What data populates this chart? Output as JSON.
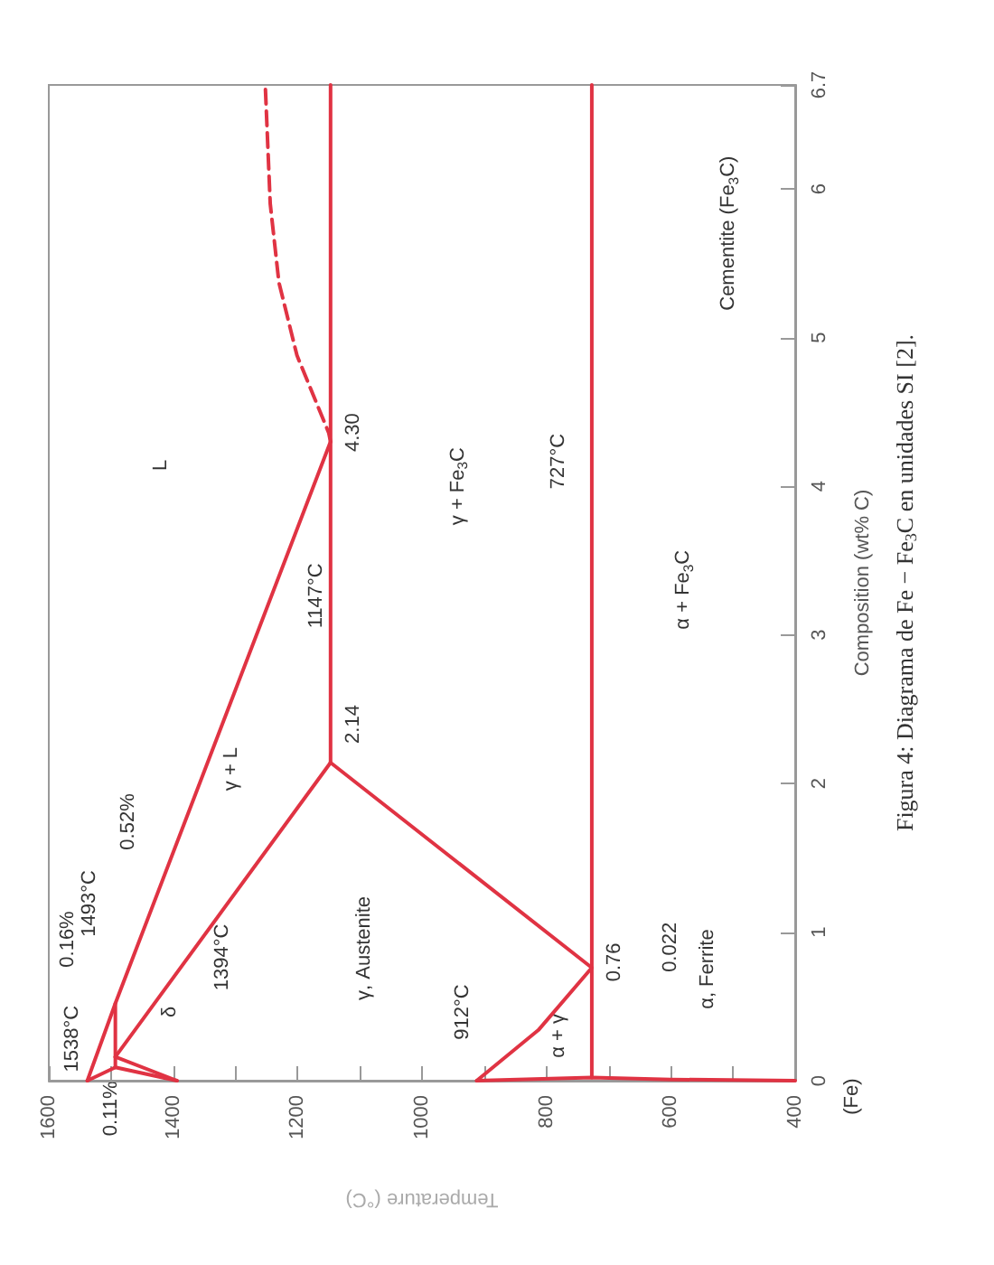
{
  "chart_data": {
    "type": "line",
    "xlabel": "Temperature (°C)",
    "ylabel": "Composition (wt% C)",
    "xlim": [
      1600,
      400
    ],
    "ylim": [
      0,
      6.7
    ],
    "xticks": [
      1600,
      {
        "value": 1500,
        "label": null
      },
      1400,
      {
        "value": 1300,
        "label": null
      },
      1200,
      {
        "value": 1100,
        "label": null
      },
      1000,
      {
        "value": 900,
        "label": null
      },
      800,
      {
        "value": 700,
        "label": null
      },
      600,
      {
        "value": 500,
        "label": null
      },
      400
    ],
    "yticks": [
      0,
      1,
      2,
      3,
      4,
      5,
      6,
      6.7
    ],
    "marker": "none",
    "series": [
      {
        "color": "#e03343",
        "x": [
          1538,
          1493,
          1147
        ],
        "values": [
          0,
          0.52,
          4.3
        ]
      },
      {
        "color": "#e03343",
        "line_style": "dashed",
        "x": [
          1147,
          1150,
          1201,
          1230,
          1244,
          1252
        ],
        "values": [
          4.3,
          4.36,
          4.88,
          5.37,
          5.9,
          6.7
        ]
      },
      {
        "color": "#e03343",
        "x": [
          1538,
          1493
        ],
        "values": [
          0,
          0.09
        ]
      },
      {
        "color": "#e03343",
        "x": [
          1493,
          1493
        ],
        "values": [
          0.09,
          0.52
        ]
      },
      {
        "color": "#e03343",
        "x": [
          1493,
          1147
        ],
        "values": [
          0.16,
          2.14
        ]
      },
      {
        "color": "#e03343",
        "x": [
          1147,
          1147
        ],
        "values": [
          2.14,
          6.7
        ]
      },
      {
        "color": "#e03343",
        "x": [
          1493,
          1394
        ],
        "values": [
          0.09,
          0
        ]
      },
      {
        "color": "#e03343",
        "x": [
          1493,
          1394
        ],
        "values": [
          0.16,
          0
        ]
      },
      {
        "color": "#e03343",
        "x": [
          1147,
          727
        ],
        "values": [
          2.14,
          0.76
        ]
      },
      {
        "color": "#e03343",
        "x": [
          912,
          813,
          727
        ],
        "values": [
          0,
          0.34,
          0.76
        ]
      },
      {
        "color": "#e03343",
        "x": [
          727,
          727
        ],
        "values": [
          0.022,
          6.7
        ]
      },
      {
        "color": "#e03343",
        "x": [
          912,
          727,
          600,
          400
        ],
        "values": [
          0,
          0.022,
          0.008,
          0
        ]
      }
    ],
    "annotations": [
      "L",
      "γ + L",
      "γ, Austenite",
      "γ + Fe$_{3}$C",
      "727°C",
      "α + Fe$_{3}$C",
      "Cementite (Fe$_{3}$C)",
      "1147°C",
      "4.30",
      "2.14",
      "0.76",
      "0.022",
      "α, Ferrite",
      "α + γ",
      "912°C",
      "1394°C",
      "δ",
      "1538°C",
      "1493°C",
      "0.16%",
      "0.52%",
      "0.11%",
      "(Fe)",
      "Figura 4: Diagrama de Fe − Fe$_{3}$C en unidades SI [2]."
    ]
  }
}
